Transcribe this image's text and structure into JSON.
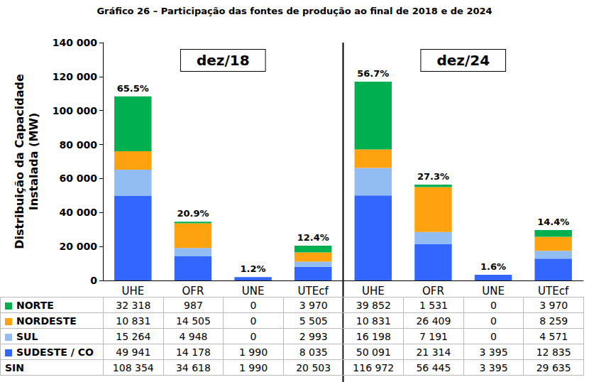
{
  "chart_data": {
    "type": "bar",
    "title": "Gráfico 26 – Participação das fontes de produção ao final de 2018 e de 2024",
    "y_label": "Distribuição da Capacidade\nInstalada (MW)",
    "categories": [
      "UHE",
      "OFR",
      "UNE",
      "UTEcf",
      "UHE",
      "OFR",
      "UNE",
      "UTEcf"
    ],
    "annotations": [
      "dez/18",
      "dez/24"
    ],
    "stacked": true,
    "grid": false,
    "ylim": [
      0,
      140000
    ],
    "yticks": [
      0,
      {
        "value": 20000,
        "label": "20 000"
      },
      {
        "value": 40000,
        "label": "40 000"
      },
      {
        "value": 60000,
        "label": "60 000"
      },
      {
        "value": 80000,
        "label": "80 000"
      },
      {
        "value": 100000,
        "label": "100 000"
      },
      {
        "value": 120000,
        "label": "120 000"
      },
      {
        "value": 140000,
        "label": "140 000"
      }
    ],
    "series": [
      {
        "name": "NORTE",
        "color": "#00b050",
        "values": [
          32318,
          987,
          0,
          3970,
          39852,
          1531,
          0,
          3970
        ],
        "value_labels": [
          "32 318",
          "987",
          "0",
          "3 970",
          "39 852",
          "1 531",
          "0",
          "3 970"
        ]
      },
      {
        "name": "NORDESTE",
        "color": "#ffa20f",
        "values": [
          10831,
          14505,
          0,
          5505,
          10831,
          26409,
          0,
          8259
        ],
        "value_labels": [
          "10 831",
          "14 505",
          "0",
          "5 505",
          "10 831",
          "26 409",
          "0",
          "8 259"
        ]
      },
      {
        "name": "SUL",
        "color": "#92bdf2",
        "values": [
          15264,
          4948,
          0,
          2993,
          16198,
          7191,
          0,
          4571
        ],
        "value_labels": [
          "15 264",
          "4 948",
          "0",
          "2 993",
          "16 198",
          "7 191",
          "0",
          "4 571"
        ]
      },
      {
        "name": "SUDESTE / CO",
        "color": "#3366ff",
        "values": [
          49941,
          14178,
          1990,
          8035,
          50091,
          21314,
          3395,
          12835
        ],
        "value_labels": [
          "49 941",
          "14 178",
          "1 990",
          "8 035",
          "50 091",
          "21 314",
          "3 395",
          "12 835"
        ]
      }
    ],
    "total": {
      "name": "SIN",
      "values": [
        108354,
        34618,
        1990,
        20503,
        116972,
        56445,
        3395,
        29635
      ],
      "value_labels": [
        "108 354",
        "34 618",
        "1 990",
        "20 503",
        "116 972",
        "56 445",
        "3 395",
        "29 635"
      ]
    },
    "share_values": [
      65.5,
      20.9,
      1.2,
      12.4,
      56.7,
      27.3,
      1.6,
      14.4
    ],
    "share_labels": [
      "65.5%",
      "20.9%",
      "1.2%",
      "12.4%",
      "56.7%",
      "27.3%",
      "1.6%",
      "14.4%"
    ]
  }
}
